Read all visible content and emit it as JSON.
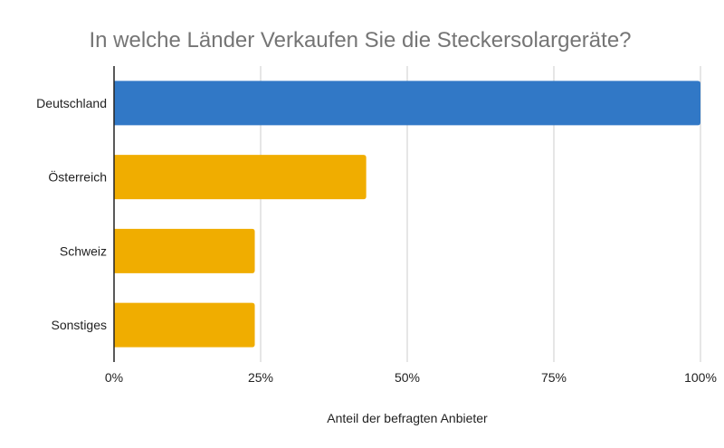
{
  "chart_data": {
    "type": "bar",
    "orientation": "horizontal",
    "title": "In welche Länder Verkaufen Sie die Steckersolargeräte?",
    "xlabel": "Anteil der befragten Anbieter",
    "ylabel": "",
    "categories": [
      "Deutschland",
      "Österreich",
      "Schweiz",
      "Sonstiges"
    ],
    "values": [
      100,
      43,
      24,
      24
    ],
    "colors": [
      "#3178c6",
      "#f0ad00",
      "#f0ad00",
      "#f0ad00"
    ],
    "xlim": [
      0,
      100
    ],
    "ticks": [
      0,
      25,
      50,
      75,
      100
    ],
    "tick_labels": [
      "0%",
      "25%",
      "50%",
      "75%",
      "100%"
    ],
    "grid": true
  }
}
